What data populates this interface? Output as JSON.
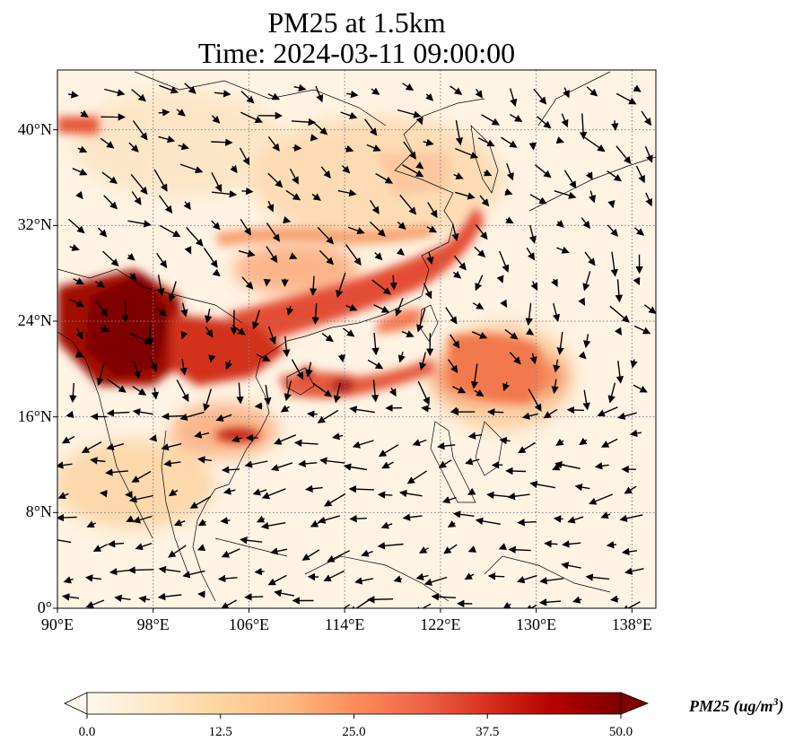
{
  "title_line1": "PM25 at 1.5km",
  "title_line2": "Time: 2024-03-11 09:00:00",
  "lon_ticks": [
    "90°E",
    "98°E",
    "106°E",
    "114°E",
    "122°E",
    "130°E",
    "138°E"
  ],
  "lat_ticks": [
    "40°N",
    "32°N",
    "24°N",
    "16°N",
    "8°N",
    "0°"
  ],
  "lon_values": [
    90,
    98,
    106,
    114,
    122,
    130,
    138
  ],
  "lat_values": [
    40,
    32,
    24,
    16,
    8,
    0
  ],
  "extent": {
    "lon": [
      90,
      140
    ],
    "lat": [
      0,
      45
    ]
  },
  "colorbar": {
    "label": "PM25 (ug/m",
    "label_sup": "3",
    "label_close": ")",
    "ticks": [
      "0.0",
      "12.5",
      "25.0",
      "37.5",
      "50.0"
    ],
    "tick_values": [
      0,
      12.5,
      25,
      37.5,
      50
    ],
    "range": [
      0,
      50
    ],
    "colormap": "OrRd",
    "colors": [
      "#fff7ec",
      "#fee8c8",
      "#fdd49e",
      "#fdbb84",
      "#fc8d59",
      "#ef6548",
      "#d7301f",
      "#b30000",
      "#7f0000"
    ]
  },
  "colors": {
    "grid": "#808080",
    "coast": "#000000",
    "arrow": "#000000"
  }
}
